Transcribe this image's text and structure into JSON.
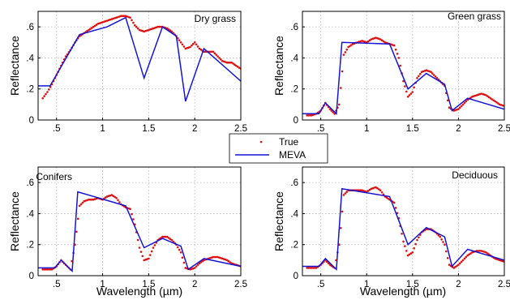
{
  "colors": {
    "true_series": "#e01010",
    "meva_series": "#1515d8"
  },
  "legend": {
    "entries": [
      "True",
      "MEVA"
    ]
  },
  "chart_data": [
    {
      "type": "line",
      "title": "Dry grass",
      "xlabel": "",
      "ylabel": "Reflectance",
      "xlim": [
        0.3,
        2.5
      ],
      "ylim": [
        0,
        0.7
      ],
      "xticks": [
        0.5,
        1,
        1.5,
        2,
        2.5
      ],
      "yticks": [
        0,
        0.2,
        0.4,
        0.6
      ],
      "grid": true,
      "series": [
        {
          "name": "True",
          "style": "dots",
          "x": [
            0.35,
            0.4,
            0.45,
            0.5,
            0.55,
            0.6,
            0.65,
            0.7,
            0.75,
            0.8,
            0.85,
            0.9,
            0.95,
            1.0,
            1.05,
            1.1,
            1.15,
            1.2,
            1.25,
            1.3,
            1.35,
            1.4,
            1.45,
            1.5,
            1.55,
            1.6,
            1.65,
            1.7,
            1.75,
            1.8,
            1.85,
            1.9,
            1.95,
            2.0,
            2.05,
            2.1,
            2.15,
            2.2,
            2.25,
            2.3,
            2.35,
            2.4,
            2.45,
            2.5
          ],
          "y": [
            0.14,
            0.18,
            0.23,
            0.29,
            0.35,
            0.41,
            0.45,
            0.5,
            0.54,
            0.56,
            0.58,
            0.6,
            0.62,
            0.63,
            0.64,
            0.65,
            0.66,
            0.67,
            0.67,
            0.66,
            0.61,
            0.58,
            0.57,
            0.58,
            0.59,
            0.6,
            0.6,
            0.59,
            0.57,
            0.54,
            0.5,
            0.46,
            0.47,
            0.5,
            0.46,
            0.44,
            0.44,
            0.44,
            0.41,
            0.38,
            0.37,
            0.37,
            0.35,
            0.33
          ]
        },
        {
          "name": "MEVA",
          "style": "line",
          "x": [
            0.3,
            0.43,
            0.75,
            1.05,
            1.25,
            1.45,
            1.65,
            1.8,
            1.9,
            2.1,
            2.5
          ],
          "y": [
            0.22,
            0.22,
            0.55,
            0.6,
            0.66,
            0.27,
            0.6,
            0.54,
            0.12,
            0.46,
            0.25
          ]
        }
      ]
    },
    {
      "type": "line",
      "title": "Green grass",
      "xlabel": "",
      "ylabel": "Reflectance",
      "xlim": [
        0.3,
        2.5
      ],
      "ylim": [
        0,
        0.7
      ],
      "xticks": [
        0.5,
        1,
        1.5,
        2,
        2.5
      ],
      "yticks": [
        0,
        0.2,
        0.4,
        0.6
      ],
      "grid": true,
      "series": [
        {
          "name": "True",
          "style": "dots",
          "x": [
            0.35,
            0.4,
            0.45,
            0.5,
            0.55,
            0.6,
            0.65,
            0.7,
            0.75,
            0.8,
            0.85,
            0.9,
            0.95,
            1.0,
            1.05,
            1.1,
            1.15,
            1.2,
            1.25,
            1.3,
            1.35,
            1.4,
            1.45,
            1.5,
            1.55,
            1.6,
            1.65,
            1.7,
            1.75,
            1.8,
            1.85,
            1.9,
            1.95,
            2.0,
            2.05,
            2.1,
            2.15,
            2.2,
            2.25,
            2.3,
            2.35,
            2.4,
            2.45,
            2.5
          ],
          "y": [
            0.03,
            0.03,
            0.04,
            0.06,
            0.11,
            0.07,
            0.04,
            0.1,
            0.42,
            0.47,
            0.49,
            0.5,
            0.51,
            0.5,
            0.52,
            0.53,
            0.52,
            0.5,
            0.49,
            0.48,
            0.4,
            0.25,
            0.15,
            0.18,
            0.27,
            0.31,
            0.32,
            0.31,
            0.28,
            0.25,
            0.22,
            0.08,
            0.06,
            0.07,
            0.1,
            0.13,
            0.15,
            0.16,
            0.17,
            0.16,
            0.14,
            0.12,
            0.1,
            0.09
          ]
        },
        {
          "name": "MEVA",
          "style": "line",
          "x": [
            0.3,
            0.48,
            0.55,
            0.67,
            0.73,
            1.25,
            1.45,
            1.65,
            1.85,
            1.93,
            2.1,
            2.5
          ],
          "y": [
            0.04,
            0.04,
            0.11,
            0.04,
            0.5,
            0.49,
            0.2,
            0.3,
            0.23,
            0.06,
            0.14,
            0.07
          ]
        }
      ]
    },
    {
      "type": "line",
      "title": "Conifers",
      "xlabel": "Wavelength (µm)",
      "ylabel": "Reflectance",
      "xlim": [
        0.3,
        2.5
      ],
      "ylim": [
        0,
        0.7
      ],
      "xticks": [
        0.5,
        1,
        1.5,
        2,
        2.5
      ],
      "yticks": [
        0,
        0.2,
        0.4,
        0.6
      ],
      "grid": true,
      "series": [
        {
          "name": "True",
          "style": "dots",
          "x": [
            0.35,
            0.4,
            0.45,
            0.5,
            0.55,
            0.6,
            0.65,
            0.7,
            0.75,
            0.8,
            0.85,
            0.9,
            0.95,
            1.0,
            1.05,
            1.1,
            1.15,
            1.2,
            1.25,
            1.3,
            1.35,
            1.4,
            1.45,
            1.5,
            1.55,
            1.6,
            1.65,
            1.7,
            1.75,
            1.8,
            1.85,
            1.9,
            1.95,
            2.0,
            2.05,
            2.1,
            2.15,
            2.2,
            2.25,
            2.3,
            2.35,
            2.4,
            2.45,
            2.5
          ],
          "y": [
            0.04,
            0.04,
            0.04,
            0.06,
            0.1,
            0.07,
            0.04,
            0.2,
            0.45,
            0.48,
            0.49,
            0.49,
            0.5,
            0.49,
            0.51,
            0.52,
            0.5,
            0.46,
            0.44,
            0.43,
            0.33,
            0.18,
            0.1,
            0.11,
            0.18,
            0.23,
            0.25,
            0.25,
            0.23,
            0.2,
            0.15,
            0.05,
            0.04,
            0.05,
            0.08,
            0.1,
            0.11,
            0.12,
            0.12,
            0.11,
            0.1,
            0.08,
            0.07,
            0.06
          ]
        },
        {
          "name": "MEVA",
          "style": "line",
          "x": [
            0.3,
            0.48,
            0.55,
            0.67,
            0.73,
            1.25,
            1.45,
            1.65,
            1.85,
            1.93,
            2.1,
            2.5
          ],
          "y": [
            0.05,
            0.05,
            0.1,
            0.03,
            0.54,
            0.45,
            0.18,
            0.24,
            0.19,
            0.04,
            0.11,
            0.06
          ]
        }
      ]
    },
    {
      "type": "line",
      "title": "Deciduous",
      "xlabel": "Wavelength (µm)",
      "ylabel": "Reflectance",
      "xlim": [
        0.3,
        2.5
      ],
      "ylim": [
        0,
        0.7
      ],
      "xticks": [
        0.5,
        1,
        1.5,
        2,
        2.5
      ],
      "yticks": [
        0,
        0.2,
        0.4,
        0.6
      ],
      "grid": true,
      "series": [
        {
          "name": "True",
          "style": "dots",
          "x": [
            0.35,
            0.4,
            0.45,
            0.5,
            0.55,
            0.6,
            0.65,
            0.7,
            0.75,
            0.8,
            0.85,
            0.9,
            0.95,
            1.0,
            1.05,
            1.1,
            1.15,
            1.2,
            1.25,
            1.3,
            1.35,
            1.4,
            1.45,
            1.5,
            1.55,
            1.6,
            1.65,
            1.7,
            1.75,
            1.8,
            1.85,
            1.9,
            1.95,
            2.0,
            2.05,
            2.1,
            2.15,
            2.2,
            2.25,
            2.3,
            2.35,
            2.4,
            2.45,
            2.5
          ],
          "y": [
            0.05,
            0.05,
            0.05,
            0.07,
            0.1,
            0.07,
            0.05,
            0.2,
            0.52,
            0.55,
            0.55,
            0.55,
            0.55,
            0.54,
            0.56,
            0.57,
            0.55,
            0.51,
            0.49,
            0.47,
            0.37,
            0.22,
            0.13,
            0.15,
            0.23,
            0.28,
            0.3,
            0.3,
            0.28,
            0.25,
            0.2,
            0.07,
            0.05,
            0.07,
            0.1,
            0.13,
            0.15,
            0.16,
            0.16,
            0.15,
            0.13,
            0.11,
            0.1,
            0.09
          ]
        },
        {
          "name": "MEVA",
          "style": "line",
          "x": [
            0.3,
            0.48,
            0.55,
            0.67,
            0.73,
            1.25,
            1.45,
            1.65,
            1.85,
            1.93,
            2.1,
            2.5
          ],
          "y": [
            0.06,
            0.06,
            0.11,
            0.04,
            0.56,
            0.51,
            0.2,
            0.31,
            0.25,
            0.06,
            0.17,
            0.1
          ]
        }
      ]
    }
  ]
}
